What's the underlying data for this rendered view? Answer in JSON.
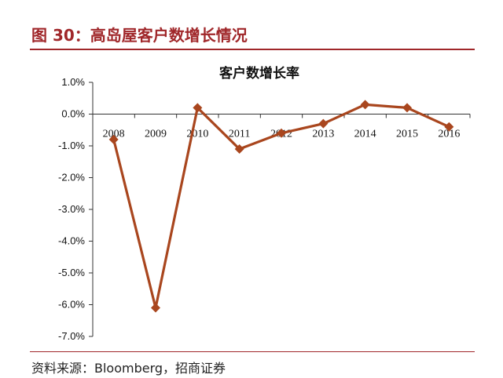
{
  "figure": {
    "title": "图 30：高岛屋客户数增长情况",
    "source": "资料来源：Bloomberg，招商证券"
  },
  "colors": {
    "accent": "#a0272a",
    "series": "#a9461e"
  },
  "chart_data": {
    "type": "line",
    "title": "客户数增长率",
    "xlabel": "",
    "ylabel": "",
    "categories": [
      "2008",
      "2009",
      "2010",
      "2011",
      "2012",
      "2013",
      "2014",
      "2015",
      "2016"
    ],
    "series": [
      {
        "values": [
          -0.8,
          -6.1,
          0.2,
          -1.1,
          -0.6,
          -0.3,
          0.3,
          0.2,
          -0.4
        ],
        "marker": "diamond"
      }
    ],
    "ylim": [
      -7.0,
      1.0
    ],
    "yticks": [
      1.0,
      0.0,
      -1.0,
      -2.0,
      -3.0,
      -4.0,
      -5.0,
      -6.0,
      -7.0
    ],
    "ytick_labels": [
      "1.0%",
      "0.0%",
      "-1.0%",
      "-2.0%",
      "-3.0%",
      "-4.0%",
      "-5.0%",
      "-6.0%",
      "-7.0%"
    ],
    "grid": false,
    "legend": "none"
  }
}
